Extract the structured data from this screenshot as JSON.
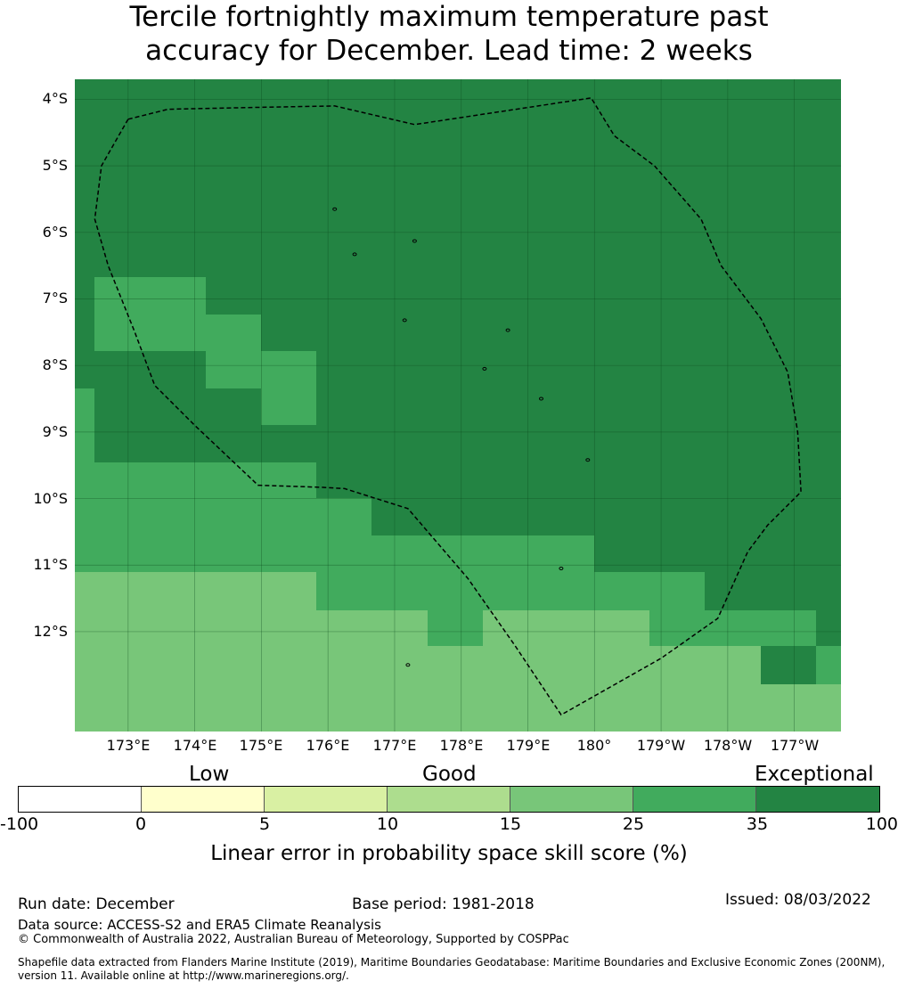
{
  "title": {
    "line1": "Tercile fortnightly maximum temperature past",
    "line2": "accuracy for December. Lead time: 2 weeks"
  },
  "map": {
    "lat_ticks": [
      "4°S",
      "5°S",
      "6°S",
      "7°S",
      "8°S",
      "9°S",
      "10°S",
      "11°S",
      "12°S"
    ],
    "lon_ticks": [
      "173°E",
      "174°E",
      "175°E",
      "176°E",
      "177°E",
      "178°E",
      "179°E",
      "180°",
      "179°W",
      "178°W",
      "177°W"
    ],
    "lon_extent_deg_east": [
      172.2,
      183.7
    ],
    "lat_extent_deg": [
      -3.7,
      -13.5
    ],
    "eez_boundary_lonlat": [
      [
        173.0,
        -4.3
      ],
      [
        173.6,
        -4.15
      ],
      [
        175.0,
        -4.12
      ],
      [
        176.1,
        -4.1
      ],
      [
        177.3,
        -4.38
      ],
      [
        179.95,
        -3.98
      ],
      [
        180.3,
        -4.55
      ],
      [
        180.9,
        -5.0
      ],
      [
        181.6,
        -5.8
      ],
      [
        181.9,
        -6.5
      ],
      [
        182.5,
        -7.3
      ],
      [
        182.9,
        -8.1
      ],
      [
        183.05,
        -9.0
      ],
      [
        183.1,
        -9.9
      ],
      [
        182.6,
        -10.4
      ],
      [
        182.3,
        -10.8
      ],
      [
        181.85,
        -11.8
      ],
      [
        181.0,
        -12.4
      ],
      [
        179.5,
        -13.25
      ],
      [
        178.8,
        -12.2
      ],
      [
        178.1,
        -11.2
      ],
      [
        177.2,
        -10.15
      ],
      [
        176.25,
        -9.85
      ],
      [
        175.9,
        -9.83
      ],
      [
        174.95,
        -9.8
      ],
      [
        174.0,
        -8.9
      ],
      [
        173.4,
        -8.3
      ],
      [
        173.1,
        -7.5
      ],
      [
        172.7,
        -6.5
      ],
      [
        172.5,
        -5.8
      ],
      [
        172.6,
        -5.0
      ],
      [
        173.0,
        -4.3
      ]
    ],
    "islands_lonlat": [
      [
        176.1,
        -5.65
      ],
      [
        177.3,
        -6.13
      ],
      [
        176.4,
        -6.33
      ],
      [
        177.15,
        -7.32
      ],
      [
        178.7,
        -7.47
      ],
      [
        178.35,
        -8.05
      ],
      [
        179.2,
        -8.5
      ],
      [
        179.9,
        -9.42
      ],
      [
        179.5,
        -11.05
      ],
      [
        177.2,
        -12.5
      ]
    ]
  },
  "colorbar": {
    "categories": [
      "Low",
      "Good",
      "Exceptional"
    ],
    "ticks": [
      "-100",
      "0",
      "5",
      "10",
      "15",
      "25",
      "35",
      "100"
    ],
    "colors": [
      "#ffffff",
      "#ffffcc",
      "#d9f0a3",
      "#addd8e",
      "#78c679",
      "#41ab5d",
      "#238443"
    ],
    "label": "Linear error in probability space skill score (%)"
  },
  "footer": {
    "run_date": "Run date: December",
    "base_period": "Base period: 1981-2018",
    "issued": "Issued: 08/03/2022",
    "data_source": "Data source: ACCESS-S2 and ERA5 Climate Reanalysis",
    "copyright": "© Commonwealth of Australia 2022, Australian Bureau of Meteorology, Supported by COSPPac",
    "shapefile_line1": "Shapefile data extracted from Flanders Marine Institute (2019), Maritime Boundaries Geodatabase: Maritime Boundaries and Exclusive Economic Zones (200NM),",
    "shapefile_line2": "version 11. Available online at http://www.marineregions.org/."
  }
}
